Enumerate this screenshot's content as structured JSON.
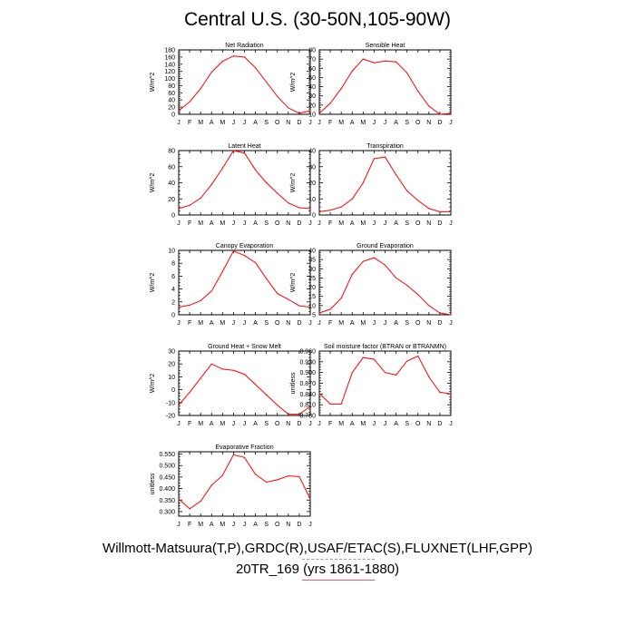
{
  "title": "Central U.S. (30-50N,105-90W)",
  "captions": {
    "line1": "Willmott-Matsuura(T,P),GRDC(R),USAF/ETAC(S),FLUXNET(LHF,GPP)",
    "line2": "20TR_169 (yrs 1861-1880)"
  },
  "colors": {
    "series": "#ff0000",
    "legend_line": "#e0606a",
    "legend_dash": "#7aa0ff",
    "axis": "#000000"
  },
  "chart_data": [
    {
      "type": "line",
      "title": "Net Radiation",
      "ylabel": "W/m^2",
      "categories": [
        "J",
        "F",
        "M",
        "A",
        "M",
        "J",
        "J",
        "A",
        "S",
        "O",
        "N",
        "D",
        "J"
      ],
      "ylim": [
        0,
        180
      ],
      "yticks": [
        "0",
        "20",
        "40",
        "60",
        "80",
        "100",
        "120",
        "140",
        "160",
        "180"
      ],
      "values": [
        10,
        35,
        72,
        118,
        148,
        163,
        160,
        130,
        90,
        50,
        18,
        3,
        10
      ]
    },
    {
      "type": "line",
      "title": "Sensible Heat",
      "ylabel": "W/m^2",
      "categories": [
        "J",
        "F",
        "M",
        "A",
        "M",
        "J",
        "J",
        "A",
        "S",
        "O",
        "N",
        "D",
        "J"
      ],
      "ylim": [
        10,
        80
      ],
      "yticks": [
        "10",
        "20",
        "30",
        "40",
        "50",
        "60",
        "70",
        "80"
      ],
      "values": [
        11,
        22,
        38,
        57,
        70,
        66,
        68,
        67,
        55,
        35,
        19,
        10,
        11
      ]
    },
    {
      "type": "line",
      "title": "Latent Heat",
      "ylabel": "W/m^2",
      "categories": [
        "J",
        "F",
        "M",
        "A",
        "M",
        "J",
        "J",
        "A",
        "S",
        "O",
        "N",
        "D",
        "J"
      ],
      "ylim": [
        0,
        80
      ],
      "yticks": [
        "0",
        "20",
        "40",
        "60",
        "80"
      ],
      "values": [
        8,
        12,
        21,
        38,
        58,
        80,
        77,
        56,
        40,
        27,
        15,
        9,
        8
      ]
    },
    {
      "type": "line",
      "title": "Transpiration",
      "ylabel": "W/m^2",
      "categories": [
        "J",
        "F",
        "M",
        "A",
        "M",
        "J",
        "J",
        "A",
        "S",
        "O",
        "N",
        "D",
        "J"
      ],
      "ylim": [
        0,
        40
      ],
      "yticks": [
        "0",
        "10",
        "20",
        "30",
        "40"
      ],
      "values": [
        2,
        3,
        5,
        10,
        20,
        35,
        36,
        25,
        15,
        9,
        4,
        2,
        2
      ]
    },
    {
      "type": "line",
      "title": "Canopy Evaporation",
      "ylabel": "W/m^2",
      "categories": [
        "J",
        "F",
        "M",
        "A",
        "M",
        "J",
        "J",
        "A",
        "S",
        "O",
        "N",
        "D",
        "J"
      ],
      "ylim": [
        0,
        10
      ],
      "yticks": [
        "0",
        "2",
        "4",
        "6",
        "8",
        "10"
      ],
      "values": [
        1.2,
        1.5,
        2.2,
        3.7,
        6.7,
        9.9,
        9.2,
        8.1,
        5.6,
        3.3,
        2.4,
        1.4,
        1.2
      ]
    },
    {
      "type": "line",
      "title": "Ground Evaporation",
      "ylabel": "W/m^2",
      "categories": [
        "J",
        "F",
        "M",
        "A",
        "M",
        "J",
        "J",
        "A",
        "S",
        "O",
        "N",
        "D",
        "J"
      ],
      "ylim": [
        5,
        40
      ],
      "yticks": [
        "5",
        "10",
        "15",
        "20",
        "25",
        "30",
        "35",
        "40"
      ],
      "values": [
        6,
        8,
        14,
        27,
        34,
        36,
        32,
        25,
        21,
        16,
        10,
        6,
        5
      ]
    },
    {
      "type": "line",
      "title": "Ground Heat + Snow Melt",
      "ylabel": "W/m^2",
      "categories": [
        "J",
        "F",
        "M",
        "A",
        "M",
        "J",
        "J",
        "A",
        "S",
        "O",
        "N",
        "D",
        "J"
      ],
      "ylim": [
        -20,
        30
      ],
      "yticks": [
        "-20",
        "-10",
        "0",
        "10",
        "20",
        "30"
      ],
      "values": [
        -12,
        -2,
        9,
        20,
        16,
        15,
        12,
        4,
        -4,
        -12,
        -19,
        -19,
        -13
      ]
    },
    {
      "type": "line",
      "title": "Soil moisture factor (BTRAN or BTRANMN)",
      "ylabel": "unitless",
      "categories": [
        "J",
        "F",
        "M",
        "A",
        "M",
        "J",
        "J",
        "A",
        "S",
        "O",
        "N",
        "D",
        "J"
      ],
      "ylim": [
        0.78,
        0.96
      ],
      "yticks": [
        "0.780",
        "0.810",
        "0.840",
        "0.870",
        "0.900",
        "0.930",
        "0.960"
      ],
      "values": [
        0.842,
        0.812,
        0.812,
        0.9,
        0.942,
        0.937,
        0.9,
        0.893,
        0.932,
        0.946,
        0.888,
        0.845,
        0.84
      ]
    },
    {
      "type": "line",
      "title": "Evaporative Fraction",
      "ylabel": "unitless",
      "categories": [
        "J",
        "F",
        "M",
        "A",
        "M",
        "J",
        "J",
        "A",
        "S",
        "O",
        "N",
        "D",
        "J"
      ],
      "ylim": [
        0.28,
        0.56
      ],
      "yticks": [
        "0.300",
        "0.350",
        "0.400",
        "0.450",
        "0.500",
        "0.550"
      ],
      "values": [
        0.355,
        0.312,
        0.345,
        0.415,
        0.457,
        0.547,
        0.535,
        0.462,
        0.428,
        0.438,
        0.455,
        0.452,
        0.355
      ]
    }
  ]
}
